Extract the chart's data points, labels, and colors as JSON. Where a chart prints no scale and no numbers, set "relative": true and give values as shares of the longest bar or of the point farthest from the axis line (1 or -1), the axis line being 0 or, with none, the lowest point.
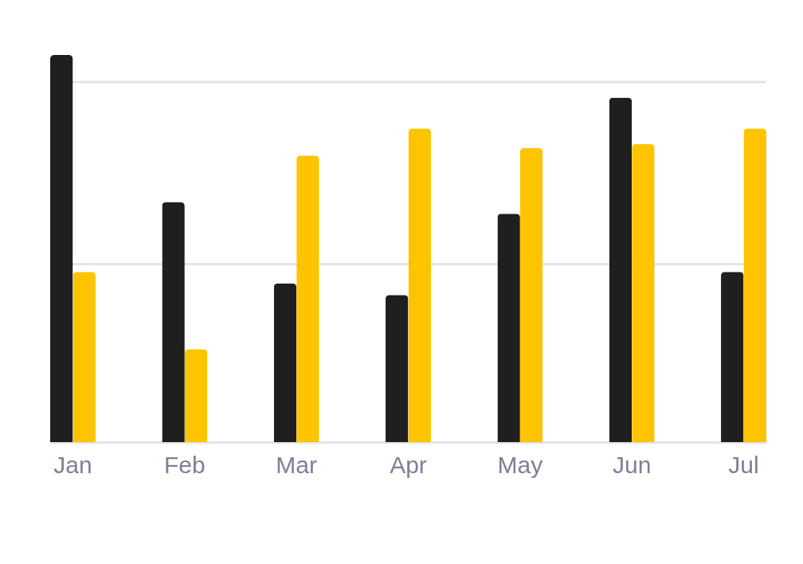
{
  "chart_data": {
    "type": "bar",
    "relative": true,
    "categories": [
      "Jan",
      "Feb",
      "Mar",
      "Apr",
      "May",
      "Jun",
      "Jul"
    ],
    "series": [
      {
        "color": "#1f1f1f",
        "values": [
          1,
          0.62,
          0.41,
          0.38,
          0.59,
          0.89,
          0.44
        ]
      },
      {
        "color": "#ffc400",
        "values": [
          0.44,
          0.24,
          0.74,
          0.81,
          0.76,
          0.77,
          0.81
        ]
      }
    ],
    "ref_lines": [
      {
        "axis": "y",
        "value": 0.46,
        "color": "#e3e3e8"
      },
      {
        "axis": "y",
        "value": 0.93,
        "color": "#e3e3e8"
      }
    ],
    "legend": false
  }
}
